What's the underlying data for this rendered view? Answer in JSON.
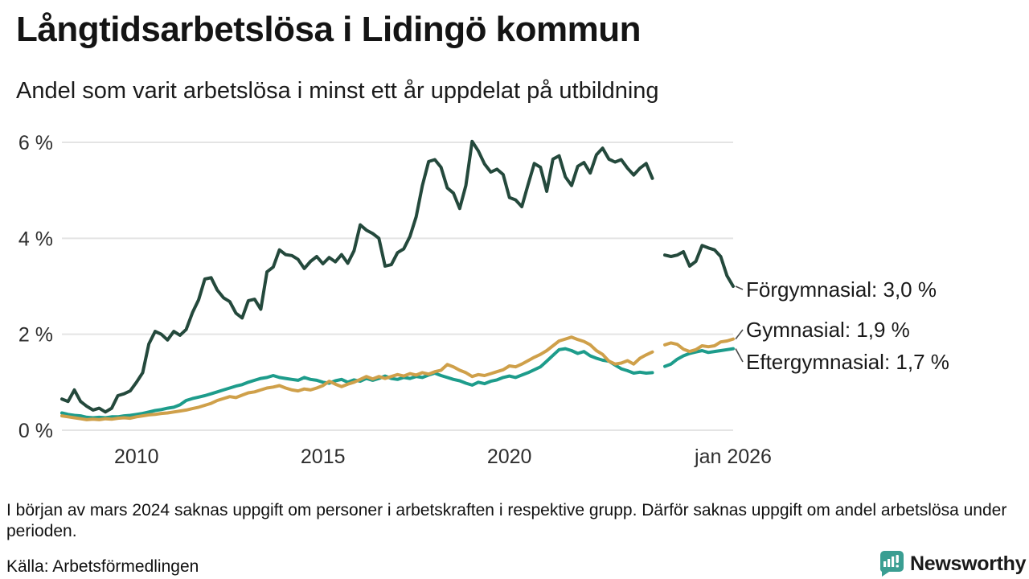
{
  "title": "Långtidsarbetslösa i Lidingö kommun",
  "subtitle": "Andel som varit arbetslösa i minst ett år uppdelat på utbildning",
  "footnote": "I början av mars 2024 saknas uppgift om personer i arbetskraften i respektive grupp. Därför saknas uppgift om andel arbetslösa under perioden.",
  "source": "Källa: Arbetsförmedlingen",
  "branding": {
    "name": "Newsworthy",
    "color": "#3a9488",
    "icon": "bar-chart-speech-bubble-icon",
    "icon_color": "#3a9e92"
  },
  "chart_data": {
    "type": "line",
    "title": "Långtidsarbetslösa i Lidingö kommun",
    "subtitle": "Andel som varit arbetslösa i minst ett år uppdelat på utbildning",
    "x_unit": "year",
    "x_start": 2008.0,
    "x_step_years": 0.1666667,
    "xlim": [
      2008,
      2026
    ],
    "ylim": [
      0,
      6.2
    ],
    "grid": true,
    "gridline_color": "#e4e4e4",
    "text_color": "#2e2e2e",
    "missing_segment_note": "values are null where data is missing (early 2024)",
    "y_ticks": [
      {
        "value": 0,
        "label": "0 %"
      },
      {
        "value": 2,
        "label": "2 %"
      },
      {
        "value": 4,
        "label": "4 %"
      },
      {
        "value": 6,
        "label": "6 %"
      }
    ],
    "x_ticks": [
      {
        "year": 2010,
        "label": "2010"
      },
      {
        "year": 2015,
        "label": "2015"
      },
      {
        "year": 2020,
        "label": "2020"
      },
      {
        "year": 2026,
        "label": "jan 2026"
      }
    ],
    "series": [
      {
        "name": "Förgymnasial",
        "label": "Förgymnasial: 3,0 %",
        "last_value": "3,0 %",
        "color": "#24493c",
        "stroke_width": 4,
        "values": [
          0.65,
          0.6,
          0.84,
          0.6,
          0.5,
          0.42,
          0.46,
          0.38,
          0.46,
          0.72,
          0.76,
          0.82,
          1.0,
          1.2,
          1.8,
          2.06,
          2.0,
          1.88,
          2.06,
          1.98,
          2.1,
          2.45,
          2.72,
          3.15,
          3.18,
          2.92,
          2.76,
          2.68,
          2.44,
          2.34,
          2.7,
          2.73,
          2.52,
          3.3,
          3.4,
          3.76,
          3.66,
          3.64,
          3.56,
          3.37,
          3.52,
          3.62,
          3.47,
          3.6,
          3.51,
          3.66,
          3.48,
          3.74,
          4.28,
          4.17,
          4.1,
          4.0,
          3.42,
          3.45,
          3.7,
          3.78,
          4.04,
          4.45,
          5.1,
          5.6,
          5.64,
          5.48,
          5.05,
          4.94,
          4.62,
          5.1,
          6.02,
          5.82,
          5.55,
          5.38,
          5.44,
          5.33,
          4.85,
          4.8,
          4.66,
          5.12,
          5.56,
          5.48,
          4.98,
          5.65,
          5.72,
          5.28,
          5.1,
          5.5,
          5.58,
          5.36,
          5.74,
          5.88,
          5.65,
          5.59,
          5.64,
          5.46,
          5.32,
          5.46,
          5.56,
          5.25,
          null,
          3.65,
          3.62,
          3.65,
          3.72,
          3.42,
          3.52,
          3.85,
          3.8,
          3.76,
          3.62,
          3.22,
          3.0
        ]
      },
      {
        "name": "Gymnasial",
        "label": "Gymnasial: 1,9 %",
        "last_value": "1,9 %",
        "color": "#cfa04a",
        "stroke_width": 4,
        "values": [
          0.3,
          0.28,
          0.26,
          0.24,
          0.22,
          0.23,
          0.22,
          0.24,
          0.23,
          0.25,
          0.26,
          0.25,
          0.28,
          0.3,
          0.32,
          0.33,
          0.35,
          0.36,
          0.38,
          0.4,
          0.42,
          0.45,
          0.48,
          0.52,
          0.56,
          0.62,
          0.66,
          0.7,
          0.68,
          0.73,
          0.78,
          0.8,
          0.84,
          0.88,
          0.9,
          0.93,
          0.88,
          0.84,
          0.82,
          0.86,
          0.84,
          0.88,
          0.93,
          1.02,
          0.96,
          0.91,
          0.96,
          1.0,
          1.06,
          1.12,
          1.07,
          1.12,
          1.08,
          1.12,
          1.16,
          1.13,
          1.18,
          1.15,
          1.2,
          1.17,
          1.22,
          1.25,
          1.37,
          1.32,
          1.25,
          1.2,
          1.12,
          1.16,
          1.14,
          1.18,
          1.22,
          1.26,
          1.34,
          1.32,
          1.38,
          1.45,
          1.52,
          1.58,
          1.66,
          1.76,
          1.86,
          1.9,
          1.94,
          1.89,
          1.85,
          1.78,
          1.66,
          1.58,
          1.44,
          1.38,
          1.4,
          1.45,
          1.38,
          1.5,
          1.57,
          1.63,
          null,
          1.78,
          1.82,
          1.79,
          1.69,
          1.64,
          1.68,
          1.76,
          1.74,
          1.76,
          1.84,
          1.86,
          1.9
        ]
      },
      {
        "name": "Eftergymnasial",
        "label": "Eftergymnasial: 1,7 %",
        "last_value": "1,7 %",
        "color": "#1d9c8b",
        "stroke_width": 4,
        "values": [
          0.36,
          0.33,
          0.31,
          0.3,
          0.27,
          0.26,
          0.27,
          0.26,
          0.28,
          0.28,
          0.3,
          0.31,
          0.33,
          0.35,
          0.38,
          0.41,
          0.43,
          0.46,
          0.48,
          0.53,
          0.62,
          0.66,
          0.69,
          0.72,
          0.76,
          0.8,
          0.84,
          0.88,
          0.92,
          0.95,
          1.0,
          1.04,
          1.08,
          1.1,
          1.14,
          1.1,
          1.08,
          1.06,
          1.04,
          1.1,
          1.06,
          1.04,
          1.0,
          0.98,
          1.03,
          1.06,
          1.0,
          1.05,
          1.02,
          1.08,
          1.04,
          1.08,
          1.13,
          1.08,
          1.06,
          1.1,
          1.08,
          1.12,
          1.1,
          1.15,
          1.19,
          1.14,
          1.1,
          1.06,
          1.03,
          0.98,
          0.94,
          1.0,
          0.97,
          1.02,
          1.05,
          1.1,
          1.13,
          1.1,
          1.15,
          1.2,
          1.26,
          1.32,
          1.44,
          1.56,
          1.68,
          1.7,
          1.66,
          1.6,
          1.64,
          1.55,
          1.5,
          1.46,
          1.44,
          1.36,
          1.28,
          1.24,
          1.19,
          1.21,
          1.19,
          1.2,
          null,
          1.33,
          1.38,
          1.48,
          1.55,
          1.6,
          1.63,
          1.66,
          1.62,
          1.64,
          1.66,
          1.68,
          1.7
        ]
      }
    ]
  }
}
